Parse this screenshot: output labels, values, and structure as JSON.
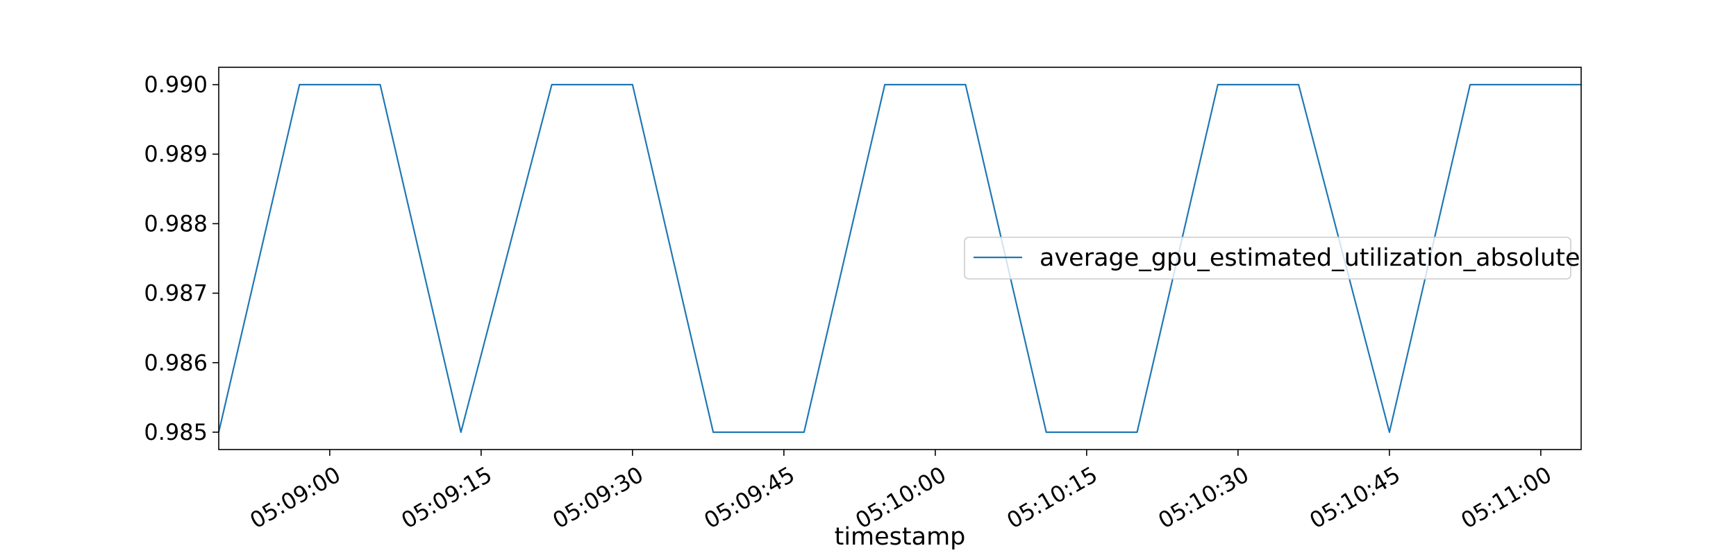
{
  "chart_data": {
    "type": "line",
    "xlabel": "timestamp",
    "ylabel": "",
    "x_ticks": [
      "05:09:00",
      "05:09:15",
      "05:09:30",
      "05:09:45",
      "05:10:00",
      "05:10:15",
      "05:10:30",
      "05:10:45",
      "05:11:00"
    ],
    "y_ticks": [
      "0.985",
      "0.986",
      "0.987",
      "0.988",
      "0.989",
      "0.990"
    ],
    "xlim": [
      "05:08:49",
      "05:11:04"
    ],
    "ylim": [
      0.98475,
      0.99025
    ],
    "grid": false,
    "legend_position": "center-right",
    "x": [
      "05:08:49",
      "05:08:57",
      "05:09:05",
      "05:09:13",
      "05:09:22",
      "05:09:30",
      "05:09:38",
      "05:09:47",
      "05:09:55",
      "05:10:03",
      "05:10:11",
      "05:10:20",
      "05:10:28",
      "05:10:36",
      "05:10:45",
      "05:10:53",
      "05:11:04"
    ],
    "series": [
      {
        "name": "average_gpu_estimated_utilization_absolute",
        "color": "#1f77b4",
        "values": [
          0.985,
          0.99,
          0.99,
          0.985,
          0.99,
          0.99,
          0.985,
          0.985,
          0.99,
          0.99,
          0.985,
          0.985,
          0.99,
          0.99,
          0.985,
          0.99,
          0.99
        ]
      }
    ]
  }
}
